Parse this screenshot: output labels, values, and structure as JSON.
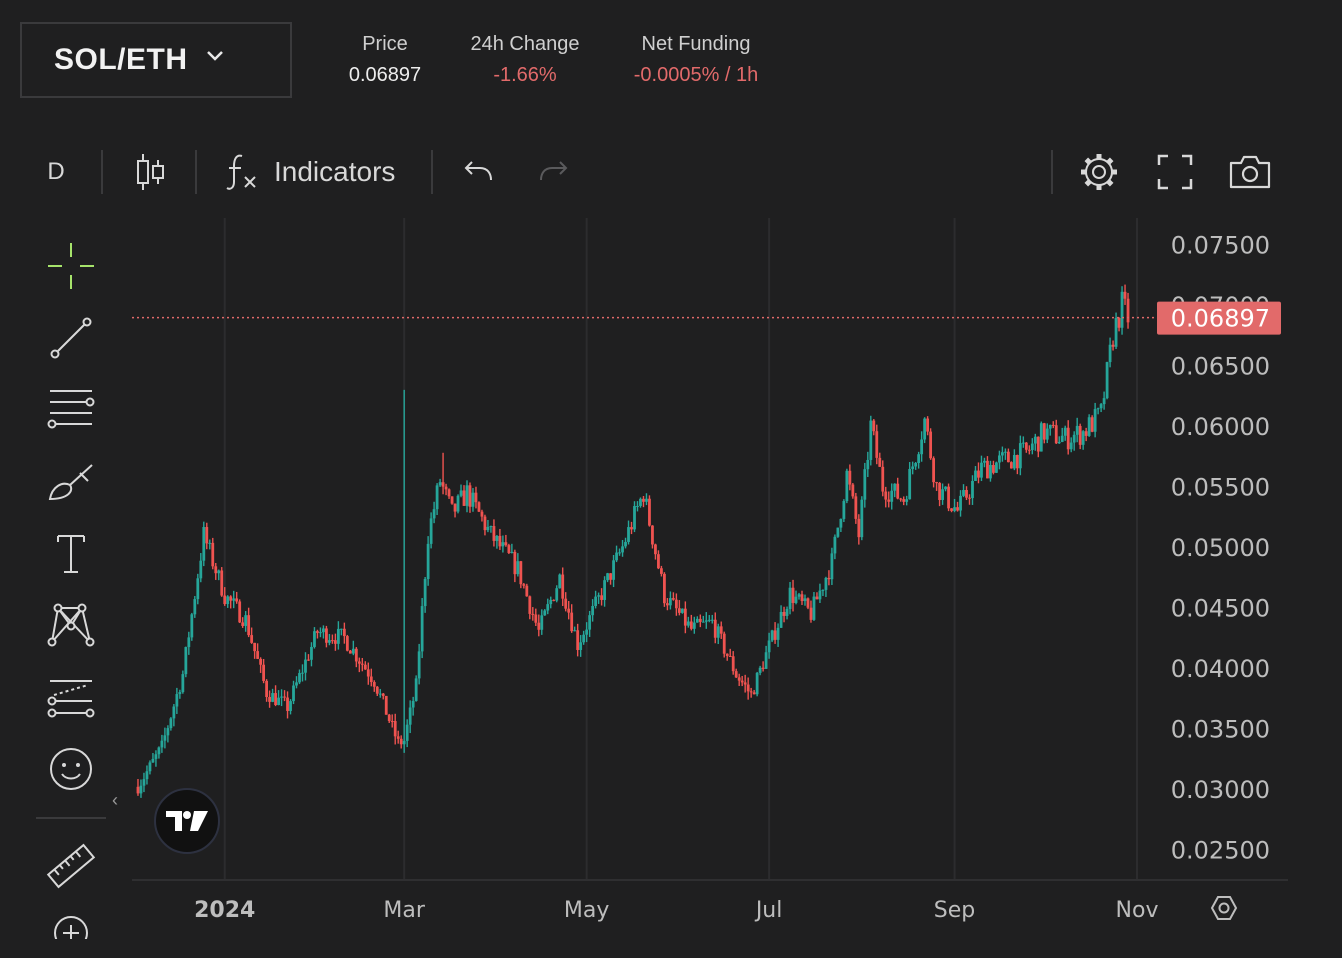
{
  "header": {
    "pair": "SOL/ETH",
    "stats": [
      {
        "label": "Price",
        "value": "0.06897",
        "tone": "neutral"
      },
      {
        "label": "24h Change",
        "value": "-1.66%",
        "tone": "neg"
      },
      {
        "label": "Net Funding",
        "value": "-0.0005% / 1h",
        "tone": "neg"
      }
    ]
  },
  "toolbar": {
    "interval": "D",
    "indicators_label": "Indicators",
    "icons": [
      "candles-icon",
      "function-icon",
      "undo-icon",
      "redo-icon",
      "gear-icon",
      "fullscreen-icon",
      "camera-icon"
    ]
  },
  "sidebar": {
    "tools": [
      "crosshair-icon",
      "trendline-icon",
      "fib-lines-icon",
      "brush-icon",
      "text-icon",
      "pattern-icon",
      "forecast-icon",
      "emoji-icon",
      "ruler-icon",
      "zoom-in-icon"
    ]
  },
  "colors": {
    "background": "#1f1f20",
    "up": "#26a69a",
    "down": "#ef5350",
    "price_tag": "#e26a6a",
    "grid": "#2c2c2e",
    "crosshair": "#a6e36b"
  },
  "chart_data": {
    "type": "candlestick",
    "x_ticks": [
      "2024",
      "Mar",
      "May",
      "Jul",
      "Sep",
      "Nov"
    ],
    "y_ticks": [
      "0.07500",
      "0.07000",
      "0.06500",
      "0.06000",
      "0.05500",
      "0.05000",
      "0.04500",
      "0.04000",
      "0.03500",
      "0.03000",
      "0.02500"
    ],
    "ylim": [
      0.0225,
      0.0772
    ],
    "last_price": 0.06897,
    "last_price_label": "0.06897",
    "x": [
      "2023-12-03",
      "2023-12-11",
      "2023-12-18",
      "2023-12-25",
      "2024-01-01",
      "2024-01-08",
      "2024-01-15",
      "2024-01-22",
      "2024-02-01",
      "2024-02-10",
      "2024-02-20",
      "2024-02-28",
      "2024-03-01",
      "2024-03-05",
      "2024-03-09",
      "2024-03-13",
      "2024-03-17",
      "2024-03-22",
      "2024-03-30",
      "2024-04-08",
      "2024-04-15",
      "2024-04-22",
      "2024-04-28",
      "2024-05-06",
      "2024-05-13",
      "2024-05-20",
      "2024-05-27",
      "2024-06-05",
      "2024-06-12",
      "2024-06-20",
      "2024-06-25",
      "2024-07-01",
      "2024-07-08",
      "2024-07-15",
      "2024-07-22",
      "2024-07-27",
      "2024-07-31",
      "2024-08-04",
      "2024-08-08",
      "2024-08-15",
      "2024-08-22",
      "2024-08-26",
      "2024-09-02",
      "2024-09-10",
      "2024-09-18",
      "2024-09-25",
      "2024-10-01",
      "2024-10-08",
      "2024-10-14",
      "2024-10-20",
      "2024-10-24",
      "2024-10-27",
      "2024-10-29"
    ],
    "close": [
      0.0302,
      0.0335,
      0.0395,
      0.051,
      0.046,
      0.044,
      0.038,
      0.0368,
      0.043,
      0.0425,
      0.039,
      0.0338,
      0.034,
      0.0385,
      0.051,
      0.0555,
      0.0528,
      0.0545,
      0.051,
      0.0482,
      0.043,
      0.0475,
      0.042,
      0.0462,
      0.05,
      0.0545,
      0.046,
      0.0432,
      0.0438,
      0.0395,
      0.0378,
      0.0418,
      0.0462,
      0.0445,
      0.0488,
      0.056,
      0.051,
      0.06,
      0.055,
      0.054,
      0.0605,
      0.055,
      0.053,
      0.0565,
      0.0572,
      0.0578,
      0.0595,
      0.059,
      0.0595,
      0.061,
      0.0675,
      0.07,
      0.069
    ]
  }
}
